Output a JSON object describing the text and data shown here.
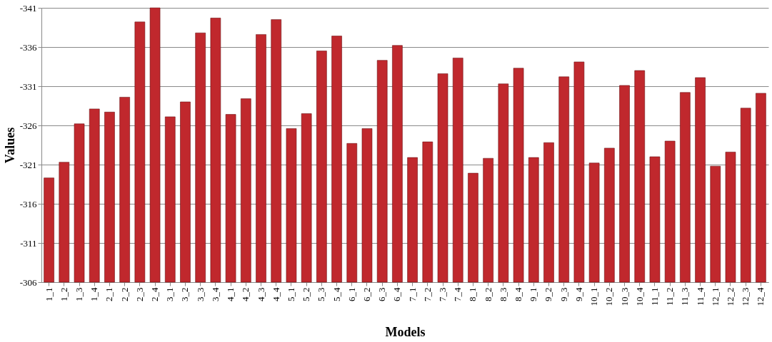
{
  "chart_data": {
    "type": "bar",
    "xlabel": "Models",
    "ylabel": "Values",
    "categories": [
      "1_1",
      "1_2",
      "1_3",
      "1_4",
      "2_1",
      "2_2",
      "2_3",
      "2_4",
      "3_1",
      "3_2",
      "3_3",
      "3_4",
      "4_1",
      "4_2",
      "4_3",
      "4_4",
      "5_1",
      "5_2",
      "5_3",
      "5_4",
      "6_1",
      "6_2",
      "6_3",
      "6_4",
      "7_1",
      "7_2",
      "7_3",
      "7_4",
      "8_1",
      "8_2",
      "8_3",
      "8_4",
      "9_1",
      "9_2",
      "9_3",
      "9_4",
      "10_1",
      "10_2",
      "10_3",
      "10_4",
      "11_1",
      "11_2",
      "11_3",
      "11_4",
      "12_1",
      "12_2",
      "12_3",
      "12_4"
    ],
    "values": [
      -319.3,
      -321.3,
      -326.2,
      -328.1,
      -327.7,
      -329.6,
      -339.2,
      -341,
      -327.1,
      -329.0,
      -337.8,
      -339.7,
      -327.4,
      -329.4,
      -337.6,
      -339.5,
      -325.6,
      -327.5,
      -335.5,
      -337.4,
      -323.7,
      -325.6,
      -334.3,
      -336.2,
      -321.9,
      -323.9,
      -332.6,
      -334.6,
      -319.9,
      -321.8,
      -331.3,
      -333.3,
      -321.9,
      -323.8,
      -332.2,
      -334.1,
      -321.2,
      -323.1,
      -331.1,
      -333.0,
      -322.0,
      -324.0,
      -330.2,
      -332.1,
      -320.8,
      -322.6,
      -328.2,
      -330.1
    ],
    "color": "#c0282d",
    "ylim": [
      -306,
      -341
    ],
    "yticks": [
      -306,
      -311,
      -316,
      -321,
      -326,
      -331,
      -336,
      -341
    ],
    "grid": "y"
  }
}
